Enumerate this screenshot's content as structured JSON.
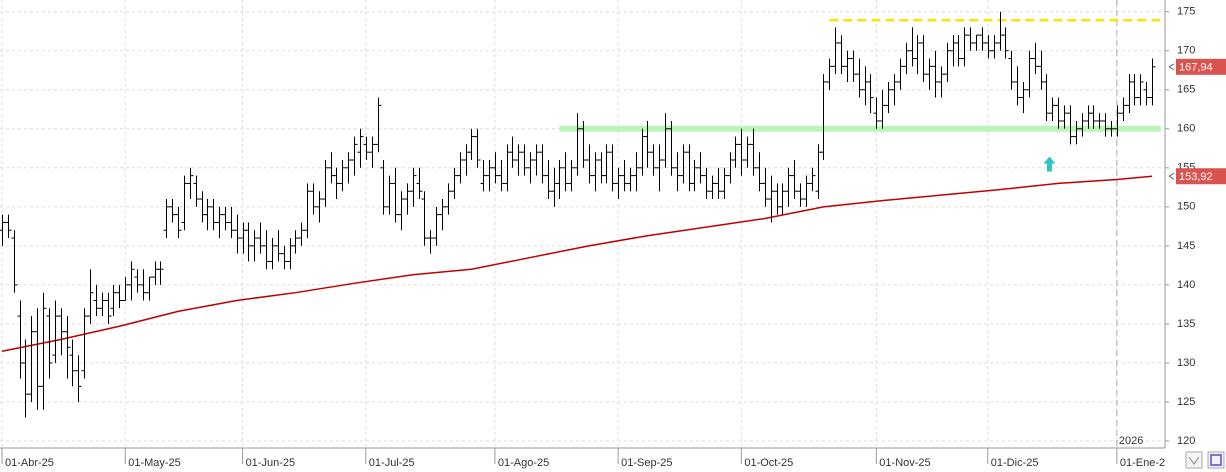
{
  "chart_data": {
    "type": "ohlc",
    "bar_color": "#000000",
    "xlim": [
      -0.34,
      198.2
    ],
    "ylim": [
      119.1,
      176.5
    ],
    "yticks": [
      120,
      125,
      130,
      135,
      140,
      145,
      150,
      155,
      160,
      165,
      170,
      175
    ],
    "xticks": [
      {
        "value": 0,
        "label": "01-Abr-25"
      },
      {
        "value": 21,
        "label": "01-May-25"
      },
      {
        "value": 41,
        "label": "01-Jun-25"
      },
      {
        "value": 62,
        "label": "01-Jul-25"
      },
      {
        "value": 84,
        "label": "01-Ago-25"
      },
      {
        "value": 105,
        "label": "01-Sep-25"
      },
      {
        "value": 126,
        "label": "01-Oct-25"
      },
      {
        "value": 149,
        "label": "01-Nov-25"
      },
      {
        "value": 168,
        "label": "01-Dic-25"
      },
      {
        "value": 190,
        "label": "01-Ene-2"
      }
    ],
    "grid": true,
    "ohlc": [
      [
        147,
        149,
        145,
        148
      ],
      [
        148,
        149,
        146,
        147
      ],
      [
        146,
        147,
        139,
        140
      ],
      [
        136,
        138,
        128,
        130
      ],
      [
        130,
        133,
        123,
        126
      ],
      [
        126,
        136,
        125,
        134
      ],
      [
        134,
        137,
        124,
        127
      ],
      [
        127,
        139,
        124,
        137
      ],
      [
        136,
        137,
        128,
        130
      ],
      [
        131,
        138,
        130,
        136
      ],
      [
        136,
        137,
        131,
        134
      ],
      [
        134,
        136,
        128,
        132
      ],
      [
        131,
        133,
        127,
        129
      ],
      [
        129,
        131,
        125,
        127
      ],
      [
        129,
        137,
        128,
        136
      ],
      [
        136,
        142,
        135,
        139
      ],
      [
        138,
        140,
        136,
        137
      ],
      [
        137,
        139,
        136,
        138
      ],
      [
        138,
        139,
        135,
        136
      ],
      [
        137,
        140,
        136,
        139
      ],
      [
        139,
        140,
        137,
        138
      ],
      [
        138,
        141,
        138,
        140
      ],
      [
        140,
        143,
        138,
        142
      ],
      [
        141,
        142,
        139,
        140
      ],
      [
        140,
        142,
        138,
        139
      ],
      [
        139,
        141,
        138,
        141
      ],
      [
        141,
        143,
        140,
        142
      ],
      [
        142,
        143,
        140,
        142
      ],
      [
        147,
        151,
        146,
        150
      ],
      [
        150,
        151,
        148,
        149
      ],
      [
        149,
        150,
        146,
        147
      ],
      [
        148,
        154,
        147,
        153
      ],
      [
        153,
        155,
        151,
        154
      ],
      [
        153,
        154,
        150,
        151
      ],
      [
        151,
        152,
        148,
        149
      ],
      [
        149,
        151,
        147,
        150
      ],
      [
        150,
        151,
        147,
        148
      ],
      [
        148,
        150,
        146,
        149
      ],
      [
        149,
        150,
        147,
        148
      ],
      [
        148,
        150,
        146,
        147
      ],
      [
        147,
        149,
        144,
        146
      ],
      [
        146,
        148,
        144,
        147
      ],
      [
        147,
        148,
        143,
        145
      ],
      [
        145,
        147,
        143,
        146
      ],
      [
        146,
        148,
        144,
        145
      ],
      [
        145,
        147,
        142,
        143
      ],
      [
        143,
        146,
        142,
        145
      ],
      [
        145,
        147,
        143,
        144
      ],
      [
        144,
        145,
        142,
        143
      ],
      [
        143,
        146,
        142,
        145
      ],
      [
        145,
        147,
        144,
        146
      ],
      [
        146,
        148,
        145,
        147
      ],
      [
        147,
        153,
        146,
        152
      ],
      [
        152,
        153,
        149,
        150
      ],
      [
        150,
        152,
        148,
        151
      ],
      [
        151,
        156,
        150,
        155
      ],
      [
        155,
        157,
        153,
        154
      ],
      [
        154,
        155,
        151,
        153
      ],
      [
        153,
        156,
        152,
        155
      ],
      [
        155,
        157,
        153,
        156
      ],
      [
        156,
        159,
        154,
        158
      ],
      [
        157,
        160,
        155,
        159
      ],
      [
        158,
        159,
        156,
        157
      ],
      [
        157,
        159,
        155,
        158
      ],
      [
        158,
        164,
        157,
        163
      ],
      [
        155,
        156,
        149,
        150
      ],
      [
        150,
        154,
        149,
        153
      ],
      [
        153,
        155,
        148,
        149
      ],
      [
        149,
        152,
        147,
        151
      ],
      [
        151,
        153,
        149,
        152
      ],
      [
        152,
        155,
        150,
        154
      ],
      [
        153,
        155,
        151,
        152
      ],
      [
        151,
        152,
        145,
        146
      ],
      [
        146,
        147,
        144,
        146
      ],
      [
        146,
        150,
        145,
        149
      ],
      [
        149,
        151,
        147,
        150
      ],
      [
        150,
        153,
        149,
        152
      ],
      [
        152,
        155,
        151,
        154
      ],
      [
        154,
        157,
        153,
        156
      ],
      [
        156,
        158,
        154,
        157
      ],
      [
        157,
        160,
        156,
        159
      ],
      [
        159,
        160,
        155,
        156
      ],
      [
        153,
        156,
        152,
        154
      ],
      [
        154,
        156,
        152,
        155
      ],
      [
        155,
        157,
        153,
        154
      ],
      [
        154,
        156,
        152,
        153
      ],
      [
        153,
        158,
        152,
        157
      ],
      [
        157,
        159,
        155,
        156
      ],
      [
        156,
        158,
        154,
        157
      ],
      [
        157,
        158,
        154,
        155
      ],
      [
        155,
        157,
        153,
        156
      ],
      [
        156,
        158,
        154,
        157
      ],
      [
        157,
        158,
        153,
        154
      ],
      [
        154,
        156,
        151,
        152
      ],
      [
        152,
        155,
        150,
        153
      ],
      [
        153,
        156,
        151,
        155
      ],
      [
        155,
        157,
        152,
        153
      ],
      [
        153,
        156,
        152,
        155
      ],
      [
        155,
        162,
        154,
        160
      ],
      [
        160,
        161,
        155,
        156
      ],
      [
        156,
        158,
        153,
        154
      ],
      [
        154,
        157,
        152,
        156
      ],
      [
        156,
        157,
        153,
        154
      ],
      [
        154,
        158,
        153,
        157
      ],
      [
        157,
        158,
        152,
        153
      ],
      [
        153,
        155,
        151,
        154
      ],
      [
        154,
        156,
        152,
        153
      ],
      [
        153,
        155,
        152,
        154
      ],
      [
        154,
        157,
        152,
        155
      ],
      [
        155,
        160,
        154,
        159
      ],
      [
        159,
        161,
        155,
        157
      ],
      [
        157,
        158,
        154,
        155
      ],
      [
        155,
        158,
        152,
        156
      ],
      [
        156,
        162,
        155,
        160
      ],
      [
        160,
        161,
        154,
        155
      ],
      [
        155,
        157,
        152,
        154
      ],
      [
        154,
        158,
        153,
        157
      ],
      [
        157,
        158,
        152,
        153
      ],
      [
        153,
        156,
        152,
        155
      ],
      [
        155,
        157,
        153,
        154
      ],
      [
        154,
        155,
        151,
        152
      ],
      [
        152,
        154,
        151,
        153
      ],
      [
        153,
        155,
        151,
        152
      ],
      [
        152,
        155,
        151,
        154
      ],
      [
        154,
        157,
        153,
        156
      ],
      [
        156,
        159,
        155,
        158
      ],
      [
        158,
        160,
        154,
        156
      ],
      [
        156,
        159,
        155,
        158
      ],
      [
        158,
        160,
        154,
        155
      ],
      [
        155,
        157,
        152,
        153
      ],
      [
        153,
        155,
        150,
        151
      ],
      [
        151,
        154,
        148,
        152
      ],
      [
        152,
        153,
        149,
        150
      ],
      [
        150,
        153,
        149,
        152
      ],
      [
        152,
        155,
        150,
        154
      ],
      [
        154,
        156,
        151,
        152
      ],
      [
        152,
        153,
        150,
        151
      ],
      [
        151,
        154,
        150,
        153
      ],
      [
        153,
        155,
        152,
        154
      ],
      [
        152,
        158,
        151,
        157
      ],
      [
        157,
        167,
        156,
        166
      ],
      [
        166,
        169,
        165,
        168
      ],
      [
        168,
        173,
        167,
        171
      ],
      [
        171,
        172,
        167,
        168
      ],
      [
        168,
        170,
        166,
        169
      ],
      [
        169,
        170,
        166,
        167
      ],
      [
        167,
        169,
        164,
        165
      ],
      [
        165,
        168,
        163,
        166
      ],
      [
        166,
        167,
        162,
        164
      ],
      [
        162,
        164,
        160,
        161
      ],
      [
        161,
        165,
        160,
        163
      ],
      [
        163,
        166,
        162,
        165
      ],
      [
        165,
        167,
        163,
        166
      ],
      [
        166,
        169,
        165,
        168
      ],
      [
        168,
        171,
        167,
        170
      ],
      [
        170,
        173,
        168,
        169
      ],
      [
        169,
        172,
        167,
        171
      ],
      [
        171,
        172,
        166,
        167
      ],
      [
        167,
        169,
        165,
        168
      ],
      [
        168,
        170,
        164,
        166
      ],
      [
        166,
        168,
        164,
        167
      ],
      [
        167,
        171,
        166,
        170
      ],
      [
        170,
        172,
        168,
        171
      ],
      [
        171,
        172,
        168,
        169
      ],
      [
        169,
        173,
        168,
        172
      ],
      [
        172,
        173,
        170,
        171
      ],
      [
        171,
        172,
        170,
        172
      ],
      [
        172,
        173,
        170,
        171
      ],
      [
        171,
        172,
        169,
        170
      ],
      [
        170,
        172,
        169,
        171
      ],
      [
        171,
        175,
        170,
        172
      ],
      [
        172,
        173,
        169,
        170
      ],
      [
        169,
        170,
        165,
        166
      ],
      [
        166,
        168,
        163,
        164
      ],
      [
        164,
        166,
        162,
        165
      ],
      [
        165,
        170,
        164,
        169
      ],
      [
        169,
        171,
        167,
        168
      ],
      [
        168,
        170,
        165,
        166
      ],
      [
        166,
        167,
        161,
        162
      ],
      [
        162,
        164,
        161,
        163
      ],
      [
        163,
        164,
        160,
        161
      ],
      [
        161,
        163,
        160,
        162
      ],
      [
        162,
        163,
        158,
        159
      ],
      [
        159,
        161,
        158,
        160
      ],
      [
        160,
        162,
        159,
        161
      ],
      [
        161,
        163,
        160,
        162
      ],
      [
        162,
        163,
        160,
        161
      ],
      [
        161,
        162,
        160,
        161
      ],
      [
        161,
        162,
        159,
        160
      ],
      [
        160,
        161,
        159,
        160
      ],
      [
        160,
        163,
        159,
        162
      ],
      [
        162,
        164,
        161,
        163
      ],
      [
        163,
        167,
        162,
        166
      ],
      [
        166,
        167,
        163,
        164
      ],
      [
        164,
        167,
        163,
        166
      ],
      [
        165,
        166,
        163,
        164
      ],
      [
        164,
        169,
        163,
        167.94
      ]
    ],
    "ma": {
      "color": "#c00000",
      "x": [
        0,
        10,
        20,
        30,
        40,
        50,
        60,
        70,
        80,
        90,
        100,
        110,
        120,
        130,
        140,
        150,
        160,
        170,
        180,
        190,
        196
      ],
      "values": [
        131.5,
        133,
        134.7,
        136.6,
        138,
        139,
        140.2,
        141.3,
        142,
        143.5,
        145,
        146.3,
        147.4,
        148.5,
        150,
        150.8,
        151.5,
        152.2,
        153,
        153.5,
        153.92
      ]
    },
    "levels": [
      {
        "value": 173.9,
        "from": 141,
        "to": 197.5,
        "color": "#f5e50a",
        "dashed": true
      },
      {
        "value": 160,
        "from": 95,
        "to": 197.5,
        "color": "#b9f5b9",
        "dashed": false
      }
    ],
    "price_tags": [
      {
        "value": 167.94,
        "label": "167,94",
        "color": "#d9534f"
      },
      {
        "value": 153.92,
        "label": "153,92",
        "color": "#d9534f"
      }
    ],
    "arrow": {
      "x": 178.5,
      "y": 155.4,
      "color": "#2ec4c4"
    },
    "year_marker": {
      "x": 190,
      "label": "2026"
    }
  }
}
